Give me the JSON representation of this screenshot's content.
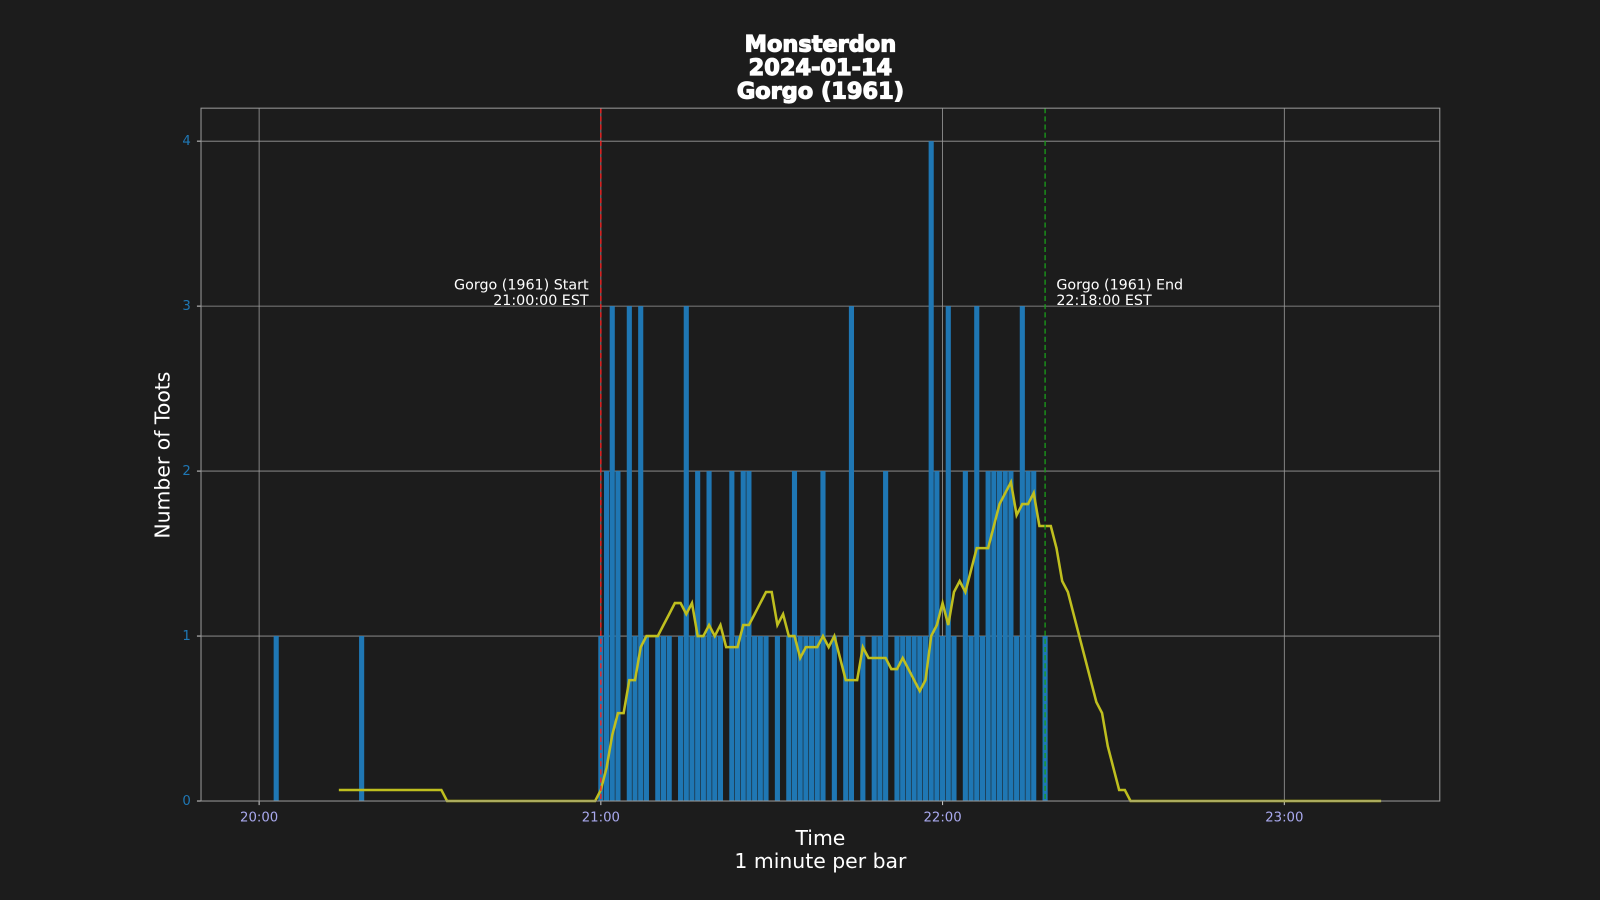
{
  "chart_data": {
    "type": "bar",
    "title": [
      "Monsterdon",
      "2024-01-14",
      "Gorgo (1961)"
    ],
    "xlabel": [
      "Time",
      "1 minute per bar"
    ],
    "ylabel": "Number of Toots",
    "xlim": [
      1189.8,
      1407.3
    ],
    "ylim": [
      0,
      4.2
    ],
    "xticks": [
      {
        "value": 1200,
        "label": "20:00"
      },
      {
        "value": 1260,
        "label": "21:00"
      },
      {
        "value": 1320,
        "label": "22:00"
      },
      {
        "value": 1380,
        "label": "23:00"
      }
    ],
    "yticks": [
      0,
      1,
      2,
      3,
      4
    ],
    "grid": true,
    "series": [
      {
        "type": "bar",
        "color": "#1f77b4",
        "x": [
          1203,
          1218,
          1260,
          1261,
          1262,
          1263,
          1264,
          1265,
          1266,
          1267,
          1268,
          1269,
          1270,
          1271,
          1272,
          1273,
          1274,
          1275,
          1276,
          1277,
          1278,
          1279,
          1280,
          1281,
          1282,
          1283,
          1284,
          1285,
          1286,
          1287,
          1288,
          1289,
          1290,
          1291,
          1292,
          1293,
          1294,
          1295,
          1296,
          1297,
          1298,
          1299,
          1300,
          1301,
          1302,
          1303,
          1304,
          1305,
          1306,
          1307,
          1308,
          1309,
          1310,
          1311,
          1312,
          1313,
          1314,
          1315,
          1316,
          1317,
          1318,
          1319,
          1320,
          1321,
          1322,
          1323,
          1324,
          1325,
          1326,
          1327,
          1328,
          1329,
          1330,
          1331,
          1332,
          1333,
          1334,
          1335,
          1336,
          1337,
          1338
        ],
        "values": [
          1,
          1,
          1,
          2,
          3,
          2,
          0,
          3,
          1,
          3,
          1,
          0,
          1,
          1,
          1,
          0,
          1,
          3,
          1,
          2,
          1,
          2,
          1,
          1,
          0,
          2,
          1,
          2,
          2,
          1,
          1,
          1,
          0,
          1,
          0,
          1,
          2,
          1,
          1,
          1,
          1,
          2,
          0,
          1,
          0,
          1,
          3,
          0,
          1,
          0,
          1,
          1,
          2,
          0,
          1,
          1,
          1,
          1,
          1,
          1,
          4,
          2,
          1,
          3,
          1,
          0,
          2,
          1,
          3,
          1,
          2,
          2,
          2,
          2,
          2,
          1,
          3,
          2,
          2,
          0,
          1
        ]
      },
      {
        "type": "line",
        "color": "#bfbf1f",
        "x": [
          1214,
          1232,
          1233,
          1259,
          1260,
          1261,
          1262,
          1263,
          1264,
          1265,
          1266,
          1267,
          1268,
          1269,
          1270,
          1271,
          1272,
          1273,
          1274,
          1275,
          1276,
          1277,
          1278,
          1279,
          1280,
          1281,
          1282,
          1283,
          1284,
          1285,
          1286,
          1287,
          1288,
          1289,
          1290,
          1291,
          1292,
          1293,
          1294,
          1295,
          1296,
          1297,
          1298,
          1299,
          1300,
          1301,
          1302,
          1303,
          1304,
          1305,
          1306,
          1307,
          1308,
          1309,
          1310,
          1311,
          1312,
          1313,
          1314,
          1315,
          1316,
          1317,
          1318,
          1319,
          1320,
          1321,
          1322,
          1323,
          1324,
          1325,
          1326,
          1327,
          1328,
          1329,
          1330,
          1331,
          1332,
          1333,
          1334,
          1335,
          1336,
          1337,
          1338,
          1339,
          1340,
          1341,
          1342,
          1343,
          1344,
          1345,
          1346,
          1347,
          1348,
          1349,
          1350,
          1351,
          1352,
          1353,
          1397
        ],
        "values": [
          0.067,
          0.067,
          0,
          0,
          0.067,
          0.2,
          0.4,
          0.533,
          0.533,
          0.733,
          0.733,
          0.933,
          1.0,
          1.0,
          1.0,
          1.067,
          1.133,
          1.2,
          1.2,
          1.133,
          1.2,
          1.0,
          1.0,
          1.067,
          1.0,
          1.067,
          0.933,
          0.933,
          0.933,
          1.067,
          1.067,
          1.133,
          1.2,
          1.267,
          1.267,
          1.067,
          1.133,
          1.0,
          1.0,
          0.867,
          0.933,
          0.933,
          0.933,
          1.0,
          0.933,
          1.0,
          0.867,
          0.733,
          0.733,
          0.733,
          0.933,
          0.867,
          0.867,
          0.867,
          0.867,
          0.8,
          0.8,
          0.867,
          0.8,
          0.733,
          0.667,
          0.733,
          1.0,
          1.067,
          1.2,
          1.067,
          1.267,
          1.333,
          1.267,
          1.4,
          1.533,
          1.533,
          1.533,
          1.667,
          1.8,
          1.867,
          1.933,
          1.733,
          1.8,
          1.8,
          1.867,
          1.667,
          1.667,
          1.667,
          1.533,
          1.333,
          1.267,
          1.133,
          1.0,
          0.867,
          0.733,
          0.6,
          0.533,
          0.333,
          0.2,
          0.067,
          0.067,
          0,
          0
        ]
      }
    ],
    "annotations": [
      {
        "x": 1260,
        "color": "#ff2020",
        "text": [
          "Gorgo (1961) Start",
          "21:00:00 EST"
        ],
        "side": "left"
      },
      {
        "x": 1338,
        "color": "#1a9a1a",
        "text": [
          "Gorgo (1961) End",
          "22:18:00 EST"
        ],
        "side": "right"
      }
    ]
  }
}
